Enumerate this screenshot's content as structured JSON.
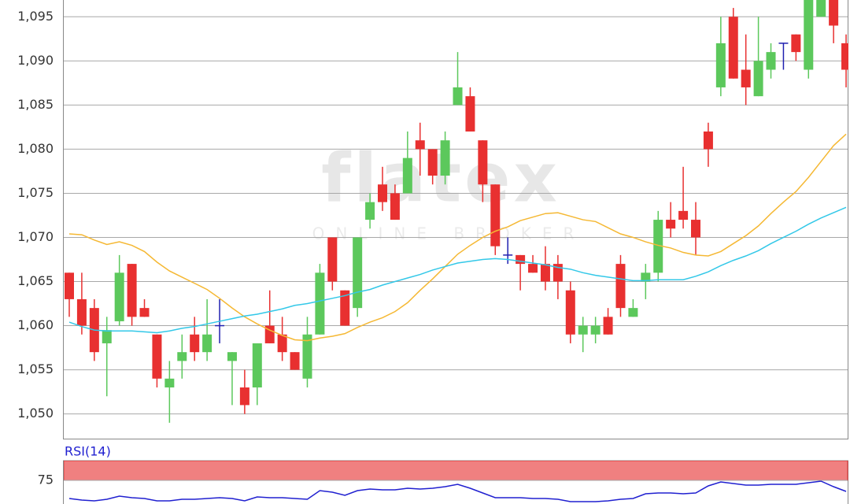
{
  "chart_data": [
    {
      "type": "candlestick",
      "watermark": "flatex",
      "watermark_subtitle": "ONLINE BROKER",
      "up_color": "#5cc85c",
      "down_color": "#e83030",
      "doji_color": "#2020b0",
      "ylim": [
        1047.2,
        1096.9
      ],
      "yticks": [
        {
          "value": 1050,
          "label": "1,050"
        },
        {
          "value": 1055,
          "label": "1,055"
        },
        {
          "value": 1060,
          "label": "1,060"
        },
        {
          "value": 1065,
          "label": "1,065"
        },
        {
          "value": 1070,
          "label": "1,070"
        },
        {
          "value": 1075,
          "label": "1,075"
        },
        {
          "value": 1080,
          "label": "1,080"
        },
        {
          "value": 1085,
          "label": "1,085"
        },
        {
          "value": 1090,
          "label": "1,090"
        },
        {
          "value": 1095,
          "label": "1,095"
        }
      ],
      "grid": true,
      "open": [
        1066,
        1063,
        1062,
        1058,
        1060.5,
        1067,
        1062,
        1059,
        1053,
        1056,
        1059,
        1057,
        1060,
        1056,
        1053,
        1053,
        1060,
        1059,
        1057,
        1054,
        1059,
        1070,
        1064,
        1062,
        1072,
        1076,
        1075,
        1075,
        1081,
        1080,
        1077,
        1085,
        1086,
        1081,
        1076,
        1068,
        1068,
        1067,
        1067,
        1067,
        1064,
        1059,
        1059,
        1061,
        1067,
        1061,
        1065,
        1066,
        1072,
        1073,
        1072,
        1082,
        1087,
        1095,
        1089,
        1086,
        1089,
        1092,
        1093,
        1089,
        1095,
        1097,
        1092
      ],
      "high": [
        1066,
        1066,
        1063,
        1061,
        1068,
        1067,
        1063,
        1059,
        1056,
        1059,
        1061,
        1063,
        1063,
        1057,
        1055,
        1058,
        1064,
        1061,
        1057,
        1061,
        1067,
        1070,
        1064,
        1070,
        1075,
        1078,
        1076,
        1082,
        1083,
        1080,
        1082,
        1091,
        1087,
        1081,
        1076,
        1070,
        1068,
        1068,
        1069,
        1068,
        1065,
        1061,
        1061,
        1062,
        1068,
        1063,
        1067,
        1073,
        1074,
        1078,
        1074,
        1083,
        1095,
        1096,
        1093,
        1095,
        1092,
        1092,
        1093,
        1097,
        1097,
        1097,
        1093
      ],
      "low": [
        1061,
        1059,
        1056,
        1052,
        1060,
        1060,
        1061,
        1053,
        1049,
        1054,
        1056,
        1056,
        1058,
        1051,
        1050,
        1051,
        1058,
        1056,
        1055,
        1053,
        1059,
        1064,
        1060,
        1061,
        1071,
        1073,
        1072,
        1075,
        1077,
        1076,
        1076,
        1085,
        1082,
        1074,
        1068,
        1067,
        1064,
        1066,
        1064,
        1063,
        1058,
        1057,
        1058,
        1059,
        1061,
        1061,
        1063,
        1065,
        1070,
        1071,
        1068,
        1078,
        1086,
        1088,
        1085,
        1086,
        1088,
        1089,
        1090,
        1088,
        1095,
        1092,
        1087
      ],
      "close": [
        1063,
        1060,
        1057,
        1059.5,
        1066,
        1061,
        1061,
        1054,
        1054,
        1057,
        1057,
        1059,
        1060,
        1057,
        1051,
        1058,
        1058,
        1057,
        1055,
        1059,
        1066,
        1065,
        1060,
        1070,
        1074,
        1074,
        1072,
        1079,
        1080,
        1077,
        1081,
        1087,
        1082,
        1076,
        1069,
        1068,
        1067,
        1066,
        1065,
        1065,
        1059,
        1060,
        1060,
        1059,
        1062,
        1062,
        1066,
        1072,
        1071,
        1072,
        1070,
        1080,
        1092,
        1088,
        1087,
        1090,
        1091,
        1092,
        1091,
        1097,
        1097,
        1094,
        1089
      ],
      "overlays": [
        {
          "color": "#f5b833",
          "values": [
            1070.4,
            1070.3,
            1069.7,
            1069.2,
            1069.5,
            1069.1,
            1068.4,
            1067.2,
            1066.2,
            1065.5,
            1064.8,
            1064.1,
            1063.1,
            1062,
            1061,
            1060.2,
            1059.5,
            1058.9,
            1058.4,
            1058.3,
            1058.6,
            1058.8,
            1059.1,
            1059.8,
            1060.4,
            1060.9,
            1061.6,
            1062.6,
            1064,
            1065.3,
            1066.7,
            1068.1,
            1069.1,
            1070,
            1070.7,
            1071.2,
            1071.9,
            1072.3,
            1072.7,
            1072.8,
            1072.4,
            1072,
            1071.8,
            1071.1,
            1070.4,
            1070,
            1069.5,
            1069.1,
            1068.8,
            1068.3,
            1068,
            1067.9,
            1068.4,
            1069.3,
            1070.2,
            1071.3,
            1072.7,
            1074,
            1075.2,
            1076.8,
            1078.6,
            1080.4,
            1081.7
          ]
        },
        {
          "color": "#33c8e8",
          "values": [
            1060.4,
            1059.9,
            1059.5,
            1059.4,
            1059.4,
            1059.4,
            1059.3,
            1059.2,
            1059.4,
            1059.7,
            1059.9,
            1060.2,
            1060.5,
            1060.8,
            1061.1,
            1061.3,
            1061.6,
            1061.9,
            1062.3,
            1062.5,
            1062.8,
            1063.1,
            1063.4,
            1063.8,
            1064.1,
            1064.6,
            1065,
            1065.4,
            1065.8,
            1066.3,
            1066.7,
            1067.1,
            1067.3,
            1067.5,
            1067.6,
            1067.5,
            1067.3,
            1067.1,
            1066.9,
            1066.6,
            1066.4,
            1066,
            1065.7,
            1065.5,
            1065.3,
            1065.1,
            1065.1,
            1065.2,
            1065.2,
            1065.2,
            1065.6,
            1066.1,
            1066.8,
            1067.4,
            1067.9,
            1068.5,
            1069.3,
            1070,
            1070.7,
            1071.5,
            1072.2,
            1072.8,
            1073.4
          ]
        }
      ]
    },
    {
      "type": "line",
      "title": "RSI(14)",
      "color": "#2020d0",
      "ylim": [
        45,
        100
      ],
      "yticks": [
        75
      ],
      "band_from": 75,
      "band_color": "#f08080",
      "values": [
        52,
        50,
        49,
        51,
        55,
        53,
        52,
        49,
        49,
        51,
        51,
        52,
        53,
        52,
        49,
        54,
        53,
        53,
        52,
        51,
        62,
        60,
        56,
        62,
        64,
        63,
        63,
        65,
        64,
        65,
        67,
        70,
        65,
        59,
        53,
        53,
        53,
        52,
        52,
        51,
        48,
        48,
        48,
        49,
        51,
        52,
        58,
        59,
        59,
        58,
        59,
        68,
        73,
        71,
        69,
        69,
        70,
        70,
        70,
        72,
        74,
        67,
        61
      ]
    }
  ]
}
